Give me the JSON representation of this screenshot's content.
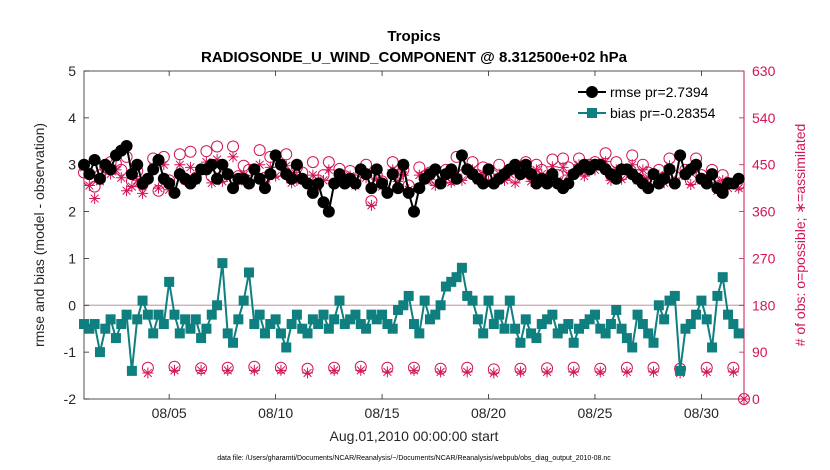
{
  "chart_data": {
    "type": "line",
    "title": "Tropics",
    "subtitle": "RADIOSONDE_U_WIND_COMPONENT @ 8.312500e+02 hPa",
    "xlabel": "Aug.01,2010 00:00:00 start",
    "ylabel_left": "rmse and bias (model - observation)",
    "ylabel_right": "# of obs: o=possible; ∗=assimilated",
    "footnote": "data file: /Users/gharamti/Documents/NCAR/Reanalysis/~/Documents/NCAR/Reanalysis/webpub/obs_diag_output_2010-08.nc",
    "xlim": [
      1.0,
      32.0
    ],
    "ylim_left": [
      -2,
      5
    ],
    "ylim_right": [
      0,
      630
    ],
    "x_ticks": [
      5,
      10,
      15,
      20,
      25,
      30
    ],
    "x_tick_labels": [
      "08/05",
      "08/10",
      "08/15",
      "08/20",
      "08/25",
      "08/30"
    ],
    "y_ticks_left": [
      -2,
      -1,
      0,
      1,
      2,
      3,
      4,
      5
    ],
    "y_ticks_right": [
      0,
      90,
      180,
      270,
      360,
      450,
      540,
      630
    ],
    "colors": {
      "rmse": "#000000",
      "bias": "#0f7f7f",
      "obs": "#d4145a",
      "zero_line": "#c9a7b0"
    },
    "legend": {
      "position": "top-right",
      "entries": [
        "rmse pr=2.7394",
        "bias pr=-0.28354"
      ]
    },
    "x": [
      1.0,
      1.25,
      1.5,
      1.75,
      2.0,
      2.25,
      2.5,
      2.75,
      3.0,
      3.25,
      3.5,
      3.75,
      4.0,
      4.25,
      4.5,
      4.75,
      5.0,
      5.25,
      5.5,
      5.75,
      6.0,
      6.25,
      6.5,
      6.75,
      7.0,
      7.25,
      7.5,
      7.75,
      8.0,
      8.25,
      8.5,
      8.75,
      9.0,
      9.25,
      9.5,
      9.75,
      10.0,
      10.25,
      10.5,
      10.75,
      11.0,
      11.25,
      11.5,
      11.75,
      12.0,
      12.25,
      12.5,
      12.75,
      13.0,
      13.25,
      13.5,
      13.75,
      14.0,
      14.25,
      14.5,
      14.75,
      15.0,
      15.25,
      15.5,
      15.75,
      16.0,
      16.25,
      16.5,
      16.75,
      17.0,
      17.25,
      17.5,
      17.75,
      18.0,
      18.25,
      18.5,
      18.75,
      19.0,
      19.25,
      19.5,
      19.75,
      20.0,
      20.25,
      20.5,
      20.75,
      21.0,
      21.25,
      21.5,
      21.75,
      22.0,
      22.25,
      22.5,
      22.75,
      23.0,
      23.25,
      23.5,
      23.75,
      24.0,
      24.25,
      24.5,
      24.75,
      25.0,
      25.25,
      25.5,
      25.75,
      26.0,
      26.25,
      26.5,
      26.75,
      27.0,
      27.25,
      27.5,
      27.75,
      28.0,
      28.25,
      28.5,
      28.75,
      29.0,
      29.25,
      29.5,
      29.75,
      30.0,
      30.25,
      30.5,
      30.75,
      31.0,
      31.25,
      31.5,
      31.75
    ],
    "series": [
      {
        "name": "rmse",
        "axis": "left",
        "marker": "circle",
        "line": true,
        "values": [
          3.0,
          2.8,
          3.1,
          2.7,
          3.0,
          2.9,
          3.2,
          3.3,
          3.4,
          2.8,
          3.0,
          2.6,
          2.7,
          2.9,
          3.1,
          2.7,
          2.6,
          2.4,
          2.8,
          2.7,
          2.6,
          2.7,
          2.9,
          2.9,
          3.0,
          2.7,
          3.0,
          2.8,
          2.5,
          2.7,
          2.7,
          2.6,
          2.9,
          2.7,
          2.5,
          2.8,
          3.2,
          3.0,
          2.8,
          2.7,
          3.0,
          2.7,
          2.6,
          2.4,
          2.6,
          2.2,
          2.0,
          2.6,
          2.8,
          2.6,
          2.7,
          2.6,
          2.9,
          2.8,
          2.5,
          2.9,
          2.6,
          2.4,
          2.8,
          2.5,
          3.0,
          2.4,
          2.0,
          2.5,
          2.7,
          2.8,
          2.9,
          2.6,
          2.8,
          2.9,
          2.7,
          3.2,
          2.9,
          2.8,
          2.7,
          2.6,
          2.9,
          2.6,
          2.7,
          2.8,
          2.9,
          3.0,
          2.8,
          3.0,
          2.8,
          2.6,
          2.7,
          2.6,
          2.8,
          2.6,
          2.5,
          2.6,
          2.8,
          2.9,
          3.0,
          2.9,
          3.0,
          3.0,
          2.9,
          2.8,
          2.7,
          2.9,
          2.9,
          2.8,
          2.7,
          2.6,
          2.5,
          2.8,
          2.6,
          2.7,
          2.9,
          2.6,
          3.2,
          2.8,
          2.9,
          3.0,
          2.7,
          2.6,
          2.8,
          2.5,
          2.4,
          2.6,
          2.6,
          2.7
        ]
      },
      {
        "name": "bias",
        "axis": "left",
        "marker": "square",
        "line": true,
        "values": [
          -0.4,
          -0.5,
          -0.4,
          -1.0,
          -0.5,
          -0.3,
          -0.7,
          -0.4,
          -0.2,
          -1.4,
          -0.3,
          0.1,
          -0.2,
          -0.6,
          -0.2,
          -0.4,
          0.5,
          -0.2,
          -0.6,
          -0.3,
          -0.5,
          -0.3,
          -0.7,
          -0.5,
          -0.2,
          0.0,
          0.9,
          -0.6,
          -0.8,
          -0.3,
          0.1,
          0.7,
          -0.4,
          -0.2,
          -0.6,
          -0.4,
          -0.3,
          -0.6,
          -0.9,
          -0.4,
          -0.2,
          -0.5,
          -0.6,
          -0.3,
          -0.4,
          -0.2,
          -0.5,
          -0.3,
          0.1,
          -0.4,
          -0.3,
          -0.2,
          -0.4,
          -0.5,
          -0.2,
          -0.3,
          -0.2,
          -0.4,
          -0.5,
          -0.1,
          0.0,
          0.2,
          -0.4,
          -0.6,
          0.1,
          -0.3,
          -0.2,
          0.0,
          0.4,
          0.5,
          0.6,
          0.8,
          0.2,
          0.1,
          -0.3,
          -0.6,
          0.1,
          -0.4,
          -0.2,
          -0.5,
          0.1,
          -0.5,
          -0.8,
          -0.3,
          -0.6,
          -0.7,
          -0.4,
          -0.3,
          -0.2,
          -0.6,
          -0.5,
          -0.4,
          -0.8,
          -0.5,
          -0.4,
          -0.3,
          -0.2,
          -0.5,
          -0.6,
          -0.4,
          -0.1,
          -0.5,
          -0.7,
          -0.9,
          -0.2,
          -0.4,
          -0.6,
          -0.8,
          0.0,
          -0.3,
          0.1,
          0.2,
          -1.4,
          -0.5,
          -0.4,
          -0.2,
          0.1,
          -0.3,
          -0.9,
          0.2,
          0.6,
          -0.2,
          -0.4,
          -0.6
        ]
      },
      {
        "name": "obs possible",
        "axis": "right",
        "marker": "open-circle",
        "line": false,
        "values": [
          435,
          420,
          408,
          430,
          445,
          455,
          452,
          440,
          465,
          418,
          438,
          412,
          60,
          462,
          400,
          465,
          420,
          62,
          470,
          422,
          475,
          425,
          59,
          476,
          428,
          485,
          426,
          60,
          485,
          428,
          448,
          440,
          62,
          478,
          425,
          465,
          435,
          60,
          470,
          425,
          445,
          435,
          58,
          455,
          420,
          430,
          455,
          60,
          442,
          428,
          438,
          420,
          62,
          450,
          380,
          430,
          418,
          60,
          455,
          430,
          440,
          410,
          60,
          445,
          428,
          435,
          420,
          58,
          440,
          422,
          465,
          430,
          60,
          455,
          430,
          445,
          428,
          57,
          450,
          430,
          440,
          425,
          58,
          455,
          430,
          450,
          440,
          59,
          460,
          430,
          462,
          445,
          60,
          462,
          438,
          450,
          455,
          58,
          472,
          430,
          455,
          430,
          60,
          468,
          430,
          450,
          435,
          60,
          440,
          425,
          462,
          428,
          58,
          440,
          420,
          462,
          430,
          60,
          440,
          408,
          430,
          415,
          60,
          412
        ]
      },
      {
        "name": "obs assimilated",
        "axis": "right",
        "marker": "asterisk",
        "line": false,
        "values": [
          445,
          410,
          385,
          418,
          450,
          432,
          440,
          425,
          400,
          408,
          420,
          395,
          50,
          445,
          405,
          450,
          402,
          55,
          450,
          420,
          445,
          420,
          55,
          455,
          415,
          460,
          418,
          55,
          465,
          418,
          430,
          420,
          55,
          450,
          415,
          445,
          428,
          55,
          448,
          415,
          420,
          420,
          50,
          430,
          410,
          420,
          440,
          55,
          420,
          418,
          428,
          410,
          55,
          425,
          372,
          422,
          408,
          52,
          440,
          418,
          430,
          402,
          55,
          430,
          420,
          422,
          410,
          52,
          425,
          416,
          432,
          420,
          52,
          440,
          420,
          430,
          418,
          50,
          432,
          420,
          432,
          415,
          52,
          442,
          418,
          440,
          432,
          52,
          446,
          420,
          445,
          430,
          52,
          450,
          428,
          440,
          440,
          52,
          456,
          420,
          440,
          422,
          52,
          450,
          420,
          440,
          425,
          52,
          430,
          415,
          448,
          418,
          50,
          428,
          412,
          446,
          420,
          52,
          430,
          400,
          420,
          405,
          52,
          405
        ]
      }
    ]
  }
}
